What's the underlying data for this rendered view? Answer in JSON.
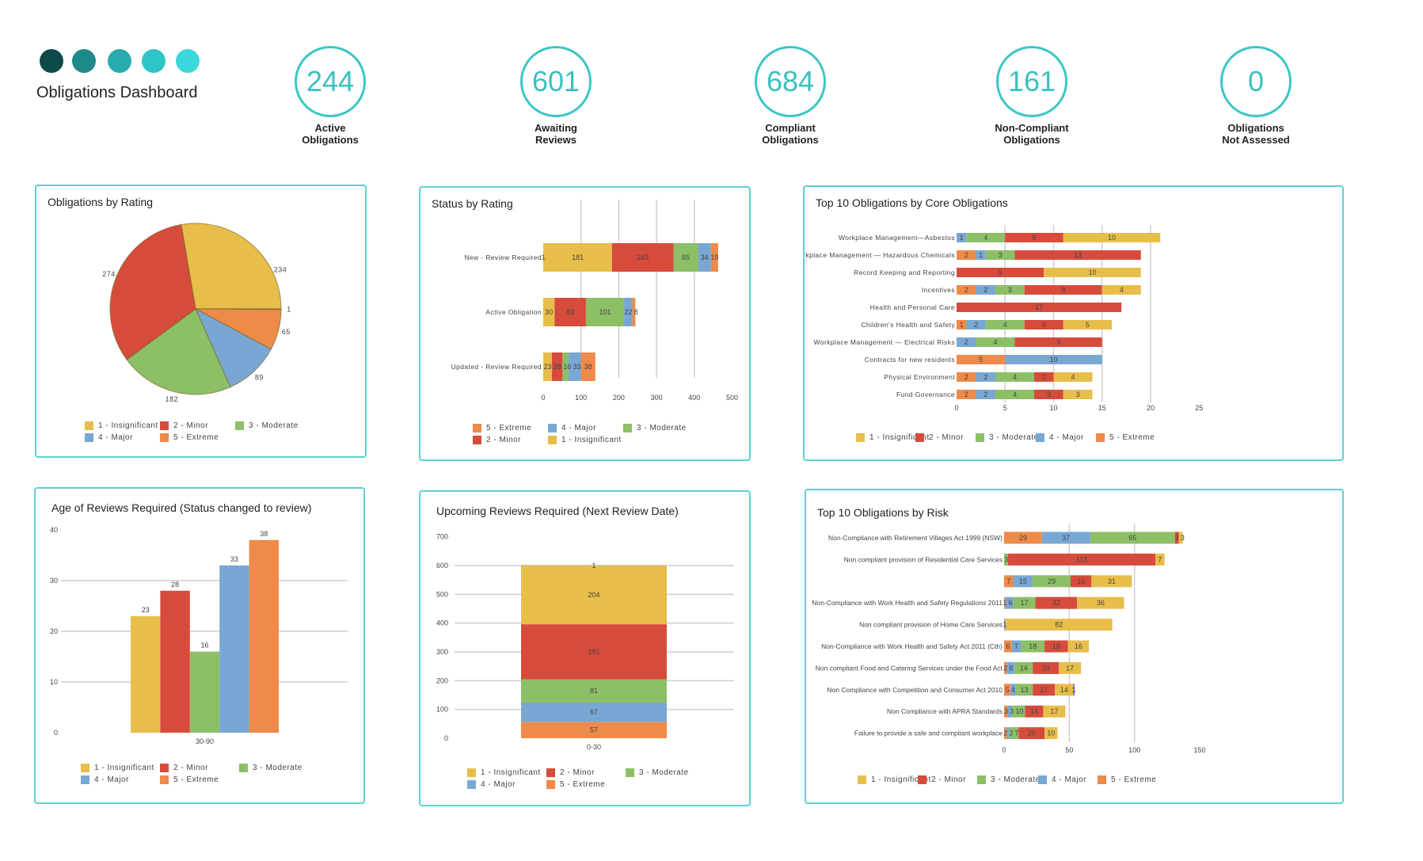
{
  "header": {
    "title": "Obligations Dashboard",
    "dot_colors": [
      "#0f4a4b",
      "#1f8b89",
      "#27abae",
      "#2fc5c8",
      "#3ad8da"
    ]
  },
  "kpis": [
    {
      "value": "244",
      "label": [
        "Active",
        "Obligations"
      ]
    },
    {
      "value": "601",
      "label": [
        "Awaiting",
        "Reviews"
      ]
    },
    {
      "value": "684",
      "label": [
        "Compliant",
        "Obligations"
      ]
    },
    {
      "value": "161",
      "label": [
        "Non-Compliant",
        "Obligations"
      ]
    },
    {
      "value": "0",
      "label": [
        "Obligations",
        "Not Assessed"
      ]
    }
  ],
  "colors": {
    "accent": "#3cc6c6",
    "insignificant": "#e8be4a",
    "minor": "#d64b3c",
    "moderate": "#8dbf67",
    "major": "#79a7d3",
    "extreme": "#ee8a4a",
    "other": "#8e6fa8"
  },
  "chart_data": [
    {
      "id": "rating",
      "type": "pie",
      "title": "Obligations by Rating",
      "series": [
        {
          "name": "1 - Insignificant",
          "color": "#e8be4a",
          "value": 234
        },
        {
          "name": "2 - Minor",
          "color": "#d64b3c",
          "value": 274
        },
        {
          "name": "3 - Moderate",
          "color": "#8dbf67",
          "value": 182
        },
        {
          "name": "4 - Major",
          "color": "#79a7d3",
          "value": 89
        },
        {
          "name": "5 - Extreme",
          "color": "#ee8a4a",
          "value": 65
        },
        {
          "color": "#8e6fa8",
          "value": 1
        }
      ]
    },
    {
      "id": "status",
      "type": "bar",
      "orientation": "horizontal",
      "stacked": true,
      "title": "Status by Rating",
      "categories": [
        "New - Review Required",
        "Active Obligation",
        "Updated - Review Required"
      ],
      "xlim": [
        0,
        500
      ],
      "xticks": [
        0,
        100,
        200,
        300,
        400,
        500
      ],
      "grid": true,
      "legend": "bottom",
      "series": [
        {
          "name": "1 - Insignificant",
          "color": "#e8be4a",
          "values": [
            181,
            30,
            23
          ]
        },
        {
          "name": "2 - Minor",
          "color": "#d64b3c",
          "values": [
            163,
            83,
            28
          ]
        },
        {
          "name": "3 - Moderate",
          "color": "#8dbf67",
          "values": [
            65,
            101,
            16
          ]
        },
        {
          "name": "4 - Major",
          "color": "#79a7d3",
          "values": [
            34,
            22,
            33
          ]
        },
        {
          "name": "5 - Extreme",
          "color": "#ee8a4a",
          "values": [
            19,
            8,
            38
          ]
        },
        {
          "color": "#e8be4a",
          "values": [
            1,
            0,
            0
          ]
        }
      ]
    },
    {
      "id": "core",
      "type": "bar",
      "orientation": "horizontal",
      "stacked": true,
      "title": "Top 10 Obligations by Core Obligations",
      "categories": [
        "Workplace Management—Asbestos",
        "Workplace Management — Hazardous Chemicals",
        "Record Keeping and Reporting",
        "Incentives",
        "Health and Personal Care",
        "Children's Health and Safety",
        "Workplace Management — Electrical Risks",
        "Contracts for new residents",
        "Physical Environment",
        "Fund Governance"
      ],
      "xlim": [
        0,
        25
      ],
      "xticks": [
        0,
        5,
        10,
        15,
        20,
        25
      ],
      "grid": true,
      "legend": "bottom",
      "series": [
        {
          "name": "1 - Insignificant",
          "color": "#e8be4a",
          "values": [
            10,
            0,
            10,
            4,
            0,
            5,
            0,
            0,
            4,
            3
          ]
        },
        {
          "name": "2 - Minor",
          "color": "#d64b3c",
          "values": [
            6,
            13,
            9,
            8,
            17,
            4,
            9,
            0,
            2,
            3
          ]
        },
        {
          "name": "3 - Moderate",
          "color": "#8dbf67",
          "values": [
            4,
            3,
            0,
            3,
            0,
            4,
            4,
            0,
            4,
            4
          ]
        },
        {
          "name": "4 - Major",
          "color": "#79a7d3",
          "values": [
            1,
            1,
            0,
            2,
            0,
            2,
            2,
            10,
            2,
            2
          ]
        },
        {
          "name": "5 - Extreme",
          "color": "#ee8a4a",
          "values": [
            0,
            2,
            0,
            2,
            0,
            1,
            0,
            5,
            2,
            2
          ]
        }
      ]
    },
    {
      "id": "age",
      "type": "bar",
      "orientation": "vertical",
      "title": "Age of Reviews Required (Status changed to review)",
      "categories": [
        "30-90"
      ],
      "ylim": [
        0,
        40
      ],
      "yticks": [
        0,
        10,
        20,
        30,
        40
      ],
      "grid": true,
      "legend": "bottom",
      "series": [
        {
          "name": "1 - Insignificant",
          "color": "#e8be4a",
          "values": [
            23
          ]
        },
        {
          "name": "2 - Minor",
          "color": "#d64b3c",
          "values": [
            28
          ]
        },
        {
          "name": "3 - Moderate",
          "color": "#8dbf67",
          "values": [
            16
          ]
        },
        {
          "name": "4 - Major",
          "color": "#79a7d3",
          "values": [
            33
          ]
        },
        {
          "name": "5 - Extreme",
          "color": "#ee8a4a",
          "values": [
            38
          ]
        }
      ]
    },
    {
      "id": "upcoming",
      "type": "bar",
      "orientation": "vertical",
      "stacked": true,
      "title": "Upcoming Reviews Required (Next Review Date)",
      "categories": [
        "0-30"
      ],
      "ylim": [
        0,
        700
      ],
      "yticks": [
        0,
        100,
        200,
        300,
        400,
        500,
        600,
        700
      ],
      "grid": true,
      "legend": "bottom",
      "series": [
        {
          "name": "1 - Insignificant",
          "color": "#e8be4a",
          "values": [
            204
          ]
        },
        {
          "name": "2 - Minor",
          "color": "#d64b3c",
          "values": [
            191
          ]
        },
        {
          "name": "3 - Moderate",
          "color": "#8dbf67",
          "values": [
            81
          ]
        },
        {
          "name": "4 - Major",
          "color": "#79a7d3",
          "values": [
            67
          ]
        },
        {
          "name": "5 - Extreme",
          "color": "#ee8a4a",
          "values": [
            57
          ]
        },
        {
          "color": "#a08a9a",
          "values": [
            1
          ]
        }
      ]
    },
    {
      "id": "risk",
      "type": "bar",
      "orientation": "horizontal",
      "stacked": true,
      "title": "Top 10 Obligations by Risk",
      "categories": [
        "Non-Compliance with Retirement Villages Act 1999 (NSW)",
        "Non compliant provision of Residential Care Services",
        "",
        "Non-Compliance with Work Health and Safety Regulations 2011",
        "Non compliant provision of Home Care Services",
        "Non-Compliance with Work Health and Safety Act 2011 (Cth)",
        "Non compliant Food and Catering Services under the Food Act",
        "Non Compliance with Competition and Consumer Act 2010",
        "Non Compliance with APRA Standards",
        "Failure to provide a safe and compliant workplace"
      ],
      "xlim": [
        0,
        150
      ],
      "xticks": [
        0,
        50,
        100,
        150
      ],
      "grid": true,
      "legend": "bottom",
      "series": [
        {
          "name": "1 - Insignificant",
          "color": "#e8be4a",
          "values": [
            3,
            7,
            31,
            36,
            82,
            16,
            17,
            14,
            17,
            10
          ]
        },
        {
          "name": "2 - Minor",
          "color": "#d64b3c",
          "values": [
            3,
            113,
            16,
            32,
            0,
            18,
            20,
            17,
            14,
            20
          ]
        },
        {
          "name": "3 - Moderate",
          "color": "#8dbf67",
          "values": [
            65,
            3,
            29,
            17,
            0,
            18,
            14,
            13,
            10,
            7
          ]
        },
        {
          "name": "4 - Major",
          "color": "#79a7d3",
          "values": [
            37,
            0,
            15,
            6,
            1,
            7,
            6,
            4,
            3,
            2
          ]
        },
        {
          "name": "5 - Extreme",
          "color": "#ee8a4a",
          "values": [
            29,
            0,
            7,
            1,
            0,
            6,
            2,
            5,
            3,
            2
          ]
        },
        {
          "color": "#8e6fa8",
          "values": [
            0,
            0,
            0,
            0,
            0,
            0,
            0,
            1,
            0,
            0
          ]
        }
      ]
    }
  ]
}
